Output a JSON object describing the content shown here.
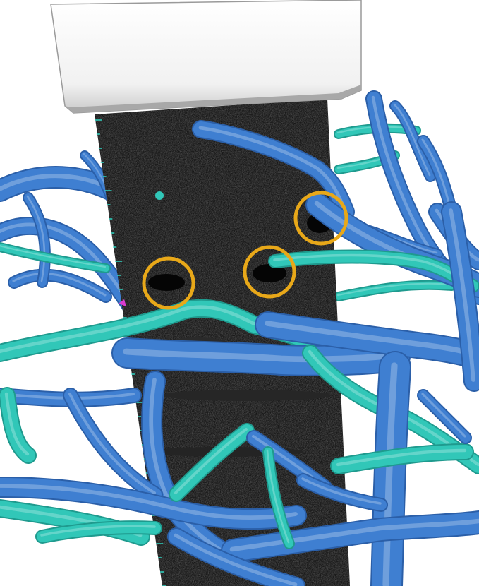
{
  "scene": {
    "kind": "3d-render",
    "subject": "ultrasound-probe-with-vessel-tree",
    "colors": {
      "background": "#ffffff",
      "probe_face": "#f2f2f2",
      "probe_shadow": "#b9b9b9",
      "ultrasound_plane": "#161616",
      "ruler_ticks": "#2fd3c1",
      "portal_vein": "#3f7fd1",
      "portal_vein_dark": "#2b5fa8",
      "hepatic_vein": "#31c7b8",
      "hepatic_vein_dark": "#1f9a8e",
      "marker_ring": "#e8a819",
      "marker_accent": "#d93bd0"
    },
    "markers": [
      {
        "name": "marker-ring-left"
      },
      {
        "name": "marker-ring-center"
      },
      {
        "name": "marker-ring-right"
      }
    ]
  }
}
